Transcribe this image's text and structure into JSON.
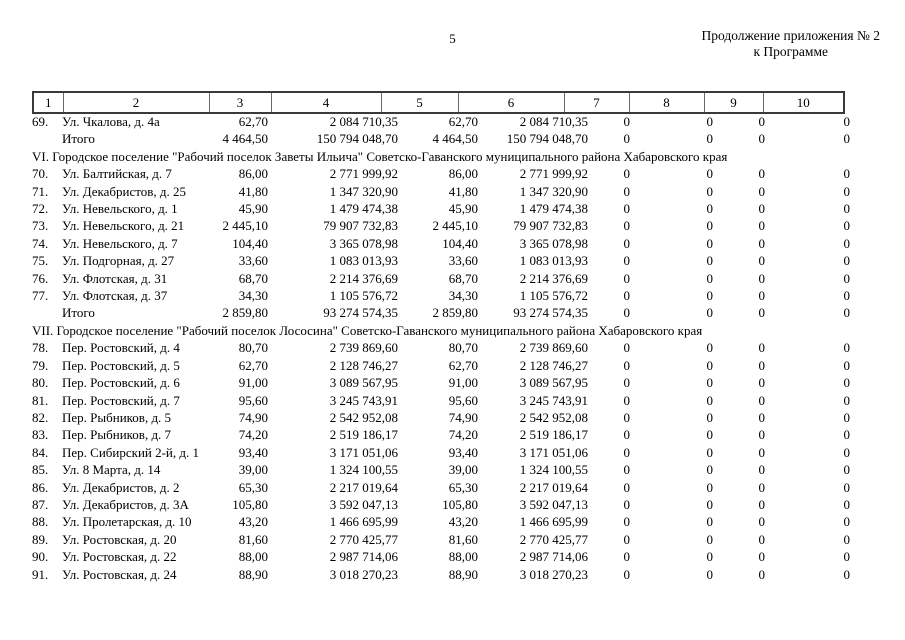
{
  "page": {
    "number": "5",
    "continuation_line1": "Продолжение приложения № 2",
    "continuation_line2": "к Программе"
  },
  "table": {
    "columns": [
      "1",
      "2",
      "3",
      "4",
      "5",
      "6",
      "7",
      "8",
      "9",
      "10"
    ],
    "total_label": "Итого",
    "rows": [
      {
        "type": "data",
        "num": "69.",
        "address": "Ул. Чкалова, д. 4а",
        "values": [
          "62,70",
          "2 084 710,35",
          "62,70",
          "2 084 710,35",
          "0",
          "0",
          "0",
          "0"
        ]
      },
      {
        "type": "total",
        "label": "Итого",
        "values": [
          "4 464,50",
          "150 794 048,70",
          "4 464,50",
          "150 794 048,70",
          "0",
          "0",
          "0",
          "0"
        ]
      },
      {
        "type": "section",
        "text": "VI. Городское поселение \"Рабочий поселок Заветы Ильича\" Советско-Гаванского муниципального района Хабаровского края"
      },
      {
        "type": "data",
        "num": "70.",
        "address": "Ул. Балтийская, д. 7",
        "values": [
          "86,00",
          "2 771 999,92",
          "86,00",
          "2 771 999,92",
          "0",
          "0",
          "0",
          "0"
        ]
      },
      {
        "type": "data",
        "num": "71.",
        "address": "Ул. Декабристов, д. 25",
        "values": [
          "41,80",
          "1 347 320,90",
          "41,80",
          "1 347 320,90",
          "0",
          "0",
          "0",
          "0"
        ]
      },
      {
        "type": "data",
        "num": "72.",
        "address": "Ул. Невельского, д. 1",
        "values": [
          "45,90",
          "1 479 474,38",
          "45,90",
          "1 479 474,38",
          "0",
          "0",
          "0",
          "0"
        ]
      },
      {
        "type": "data",
        "num": "73.",
        "address": "Ул. Невельского, д. 21",
        "values": [
          "2 445,10",
          "79 907 732,83",
          "2 445,10",
          "79 907 732,83",
          "0",
          "0",
          "0",
          "0"
        ]
      },
      {
        "type": "data",
        "num": "74.",
        "address": "Ул. Невельского, д. 7",
        "values": [
          "104,40",
          "3 365 078,98",
          "104,40",
          "3 365 078,98",
          "0",
          "0",
          "0",
          "0"
        ]
      },
      {
        "type": "data",
        "num": "75.",
        "address": "Ул. Подгорная, д. 27",
        "values": [
          "33,60",
          "1 083 013,93",
          "33,60",
          "1 083 013,93",
          "0",
          "0",
          "0",
          "0"
        ]
      },
      {
        "type": "data",
        "num": "76.",
        "address": "Ул. Флотская, д. 31",
        "values": [
          "68,70",
          "2 214 376,69",
          "68,70",
          "2 214 376,69",
          "0",
          "0",
          "0",
          "0"
        ]
      },
      {
        "type": "data",
        "num": "77.",
        "address": "Ул. Флотская, д. 37",
        "values": [
          "34,30",
          "1 105 576,72",
          "34,30",
          "1 105 576,72",
          "0",
          "0",
          "0",
          "0"
        ]
      },
      {
        "type": "total",
        "label": "Итого",
        "values": [
          "2 859,80",
          "93 274 574,35",
          "2 859,80",
          "93 274 574,35",
          "0",
          "0",
          "0",
          "0"
        ]
      },
      {
        "type": "section",
        "text": "VII. Городское поселение \"Рабочий поселок Лососина\" Советско-Гаванского муниципального района Хабаровского края"
      },
      {
        "type": "data",
        "num": "78.",
        "address": "Пер. Ростовский, д. 4",
        "values": [
          "80,70",
          "2 739 869,60",
          "80,70",
          "2 739 869,60",
          "0",
          "0",
          "0",
          "0"
        ]
      },
      {
        "type": "data",
        "num": "79.",
        "address": "Пер. Ростовский, д. 5",
        "values": [
          "62,70",
          "2 128 746,27",
          "62,70",
          "2 128 746,27",
          "0",
          "0",
          "0",
          "0"
        ]
      },
      {
        "type": "data",
        "num": "80.",
        "address": "Пер. Ростовский, д. 6",
        "values": [
          "91,00",
          "3 089 567,95",
          "91,00",
          "3 089 567,95",
          "0",
          "0",
          "0",
          "0"
        ]
      },
      {
        "type": "data",
        "num": "81.",
        "address": "Пер. Ростовский, д. 7",
        "values": [
          "95,60",
          "3 245 743,91",
          "95,60",
          "3 245 743,91",
          "0",
          "0",
          "0",
          "0"
        ]
      },
      {
        "type": "data",
        "num": "82.",
        "address": "Пер. Рыбников, д. 5",
        "values": [
          "74,90",
          "2 542 952,08",
          "74,90",
          "2 542 952,08",
          "0",
          "0",
          "0",
          "0"
        ]
      },
      {
        "type": "data",
        "num": "83.",
        "address": "Пер. Рыбников, д. 7",
        "values": [
          "74,20",
          "2 519 186,17",
          "74,20",
          "2 519 186,17",
          "0",
          "0",
          "0",
          "0"
        ]
      },
      {
        "type": "data",
        "num": "84.",
        "address": "Пер. Сибирский 2-й, д. 1",
        "values": [
          "93,40",
          "3 171 051,06",
          "93,40",
          "3 171 051,06",
          "0",
          "0",
          "0",
          "0"
        ]
      },
      {
        "type": "data",
        "num": "85.",
        "address": "Ул. 8 Марта, д. 14",
        "values": [
          "39,00",
          "1 324 100,55",
          "39,00",
          "1 324 100,55",
          "0",
          "0",
          "0",
          "0"
        ]
      },
      {
        "type": "data",
        "num": "86.",
        "address": "Ул. Декабристов, д. 2",
        "values": [
          "65,30",
          "2 217 019,64",
          "65,30",
          "2 217 019,64",
          "0",
          "0",
          "0",
          "0"
        ]
      },
      {
        "type": "data",
        "num": "87.",
        "address": "Ул. Декабристов, д. 3А",
        "values": [
          "105,80",
          "3 592 047,13",
          "105,80",
          "3 592 047,13",
          "0",
          "0",
          "0",
          "0"
        ]
      },
      {
        "type": "data",
        "num": "88.",
        "address": "Ул. Пролетарская, д. 10",
        "values": [
          "43,20",
          "1 466 695,99",
          "43,20",
          "1 466 695,99",
          "0",
          "0",
          "0",
          "0"
        ]
      },
      {
        "type": "data",
        "num": "89.",
        "address": "Ул. Ростовская, д. 20",
        "values": [
          "81,60",
          "2 770 425,77",
          "81,60",
          "2 770 425,77",
          "0",
          "0",
          "0",
          "0"
        ]
      },
      {
        "type": "data",
        "num": "90.",
        "address": "Ул. Ростовская, д. 22",
        "values": [
          "88,00",
          "2 987 714,06",
          "88,00",
          "2 987 714,06",
          "0",
          "0",
          "0",
          "0"
        ]
      },
      {
        "type": "data",
        "num": "91.",
        "address": "Ул. Ростовская, д. 24",
        "values": [
          "88,90",
          "3 018 270,23",
          "88,90",
          "3 018 270,23",
          "0",
          "0",
          "0",
          "0"
        ]
      }
    ]
  }
}
